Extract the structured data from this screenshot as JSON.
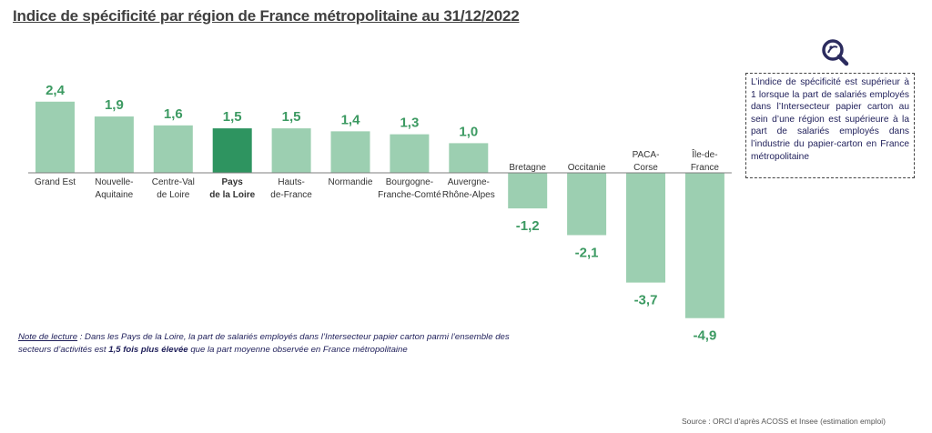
{
  "title": "Indice de spécificité par région de France métropolitaine au 31/12/2022",
  "info_box": "L’indice de spécificité est supérieur à 1 lorsque la part de salariés employés dans l’Intersecteur papier carton au sein d’une région est supérieure à la part de salariés employés dans l’industrie du papier-carton en France métropolitaine",
  "note": {
    "label": "Note de lecture",
    "part1": " : Dans les Pays de la Loire, la part de salariés employés dans l’Intersecteur papier carton parmi l’ensemble des secteurs d’activités est ",
    "bold": "1,5 fois plus élevée",
    "part2": " que la part moyenne observée en France métropolitaine"
  },
  "source": "Source : ORCI d’après ACOSS et Insee (estimation emploi)",
  "colors": {
    "bar": "#9ccfb1",
    "highlight": "#2e9460",
    "value_label": "#3c9a62",
    "axis": "#7f7f7f"
  },
  "icon": "magnifier-info-icon",
  "chart_data": {
    "type": "bar",
    "categories": [
      [
        "Grand Est"
      ],
      [
        "Nouvelle-",
        "Aquitaine"
      ],
      [
        "Centre-Val",
        "de Loire"
      ],
      [
        "Pays",
        "de la Loire"
      ],
      [
        "Hauts-",
        "de-France"
      ],
      [
        "Normandie"
      ],
      [
        "Bourgogne-",
        "Franche-Comté"
      ],
      [
        "Auvergne-",
        "Rhône-Alpes"
      ],
      [
        "Bretagne"
      ],
      [
        "Occitanie"
      ],
      [
        "PACA-",
        "Corse"
      ],
      [
        "Île-de-",
        "France"
      ]
    ],
    "values": [
      2.4,
      1.9,
      1.6,
      1.5,
      1.5,
      1.4,
      1.3,
      1.0,
      -1.2,
      -2.1,
      -3.7,
      -4.9
    ],
    "value_labels": [
      "2,4",
      "1,9",
      "1,6",
      "1,5",
      "1,5",
      "1,4",
      "1,3",
      "1,0",
      "-1,2",
      "-2,1",
      "-3,7",
      "-4,9"
    ],
    "highlight_index": 3,
    "title": "Indice de spécificité par région de France métropolitaine au 31/12/2022",
    "xlabel": "",
    "ylabel": ""
  }
}
